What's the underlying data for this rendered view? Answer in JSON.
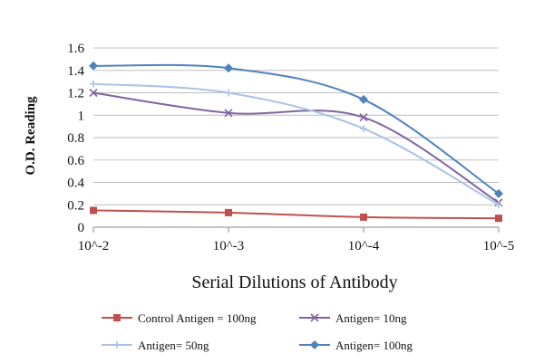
{
  "chart_data": {
    "type": "line",
    "categories": [
      "10^-2",
      "10^-3",
      "10^-4",
      "10^-5"
    ],
    "xlabel": "Serial Dilutions  of Antibody",
    "ylabel": "O.D. Reading",
    "ylim": [
      0,
      1.6
    ],
    "yticks": [
      "0",
      "0.2",
      "0.4",
      "0.6",
      "0.8",
      "1",
      "1.2",
      "1.4",
      "1.6"
    ],
    "grid": "horizontal",
    "legend_position": "bottom",
    "series": [
      {
        "name": "Control Antigen = 100ng",
        "values": [
          0.15,
          0.13,
          0.09,
          0.08
        ],
        "color": "#c0504d",
        "marker": "square"
      },
      {
        "name": "Antigen= 10ng",
        "values": [
          1.2,
          1.02,
          0.98,
          0.22
        ],
        "color": "#8064a2",
        "marker": "x"
      },
      {
        "name": "Antigen= 50ng",
        "values": [
          1.28,
          1.2,
          0.88,
          0.2
        ],
        "color": "#a9c2e6",
        "marker": "plus"
      },
      {
        "name": "Antigen= 100ng",
        "values": [
          1.44,
          1.42,
          1.14,
          0.3
        ],
        "color": "#4f81bd",
        "marker": "diamond"
      }
    ]
  }
}
